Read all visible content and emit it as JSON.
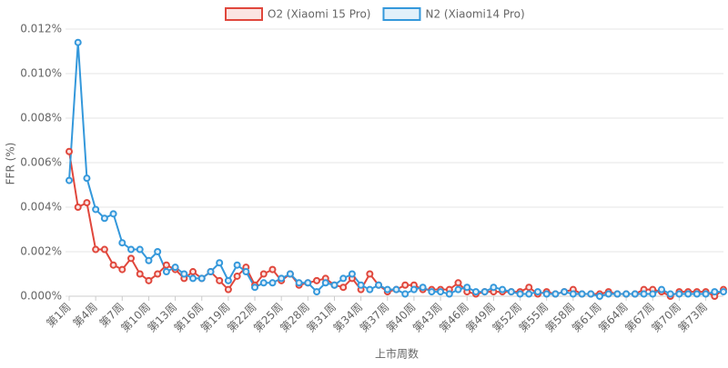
{
  "chart_data": {
    "type": "line",
    "x_label": "上市周数",
    "y_label": "FFR (%)",
    "categories": [
      "第1周",
      null,
      null,
      "第4周",
      null,
      null,
      "第7周",
      null,
      null,
      "第10周",
      null,
      null,
      "第13周",
      null,
      null,
      "第16周",
      null,
      null,
      "第19周",
      null,
      null,
      "第22周",
      null,
      null,
      "第25周",
      null,
      null,
      "第28周",
      null,
      null,
      "第31周",
      null,
      null,
      "第34周",
      null,
      null,
      "第37周",
      null,
      null,
      "第40周",
      null,
      null,
      "第43周",
      null,
      null,
      "第46周",
      null,
      null,
      "第49周",
      null,
      null,
      "第52周",
      null,
      null,
      "第55周",
      null,
      null,
      "第58周",
      null,
      null,
      "第61周",
      null,
      null,
      "第64周",
      null,
      null,
      "第67周",
      null,
      null,
      "第70周",
      null,
      null,
      "第73周",
      null,
      null
    ],
    "series": [
      {
        "name": "O2 (Xiaomi 15 Pro)",
        "color": "#e0473c",
        "fill": "#fbe4e2",
        "values": [
          0.0065,
          0.004,
          0.0042,
          0.0021,
          0.0021,
          0.0014,
          0.0012,
          0.0017,
          0.001,
          0.0007,
          0.001,
          0.0014,
          0.0012,
          0.0008,
          0.0011,
          0.0008,
          0.0011,
          0.0007,
          0.0003,
          0.0009,
          0.0013,
          0.0005,
          0.001,
          0.0012,
          0.0007,
          0.001,
          0.0005,
          0.0006,
          0.0007,
          0.0008,
          0.0005,
          0.0004,
          0.0008,
          0.0003,
          0.001,
          0.0005,
          0.0002,
          0.0003,
          0.0005,
          0.0005,
          0.0003,
          0.0003,
          0.0003,
          0.0003,
          0.0006,
          0.0002,
          0.0001,
          0.0002,
          0.0002,
          0.0002,
          0.0002,
          0.0002,
          0.0004,
          0.0001,
          0.0002,
          0.0001,
          0.0002,
          0.0003,
          0.0001,
          0.0001,
          0.0001,
          0.0002,
          0.0001,
          0.0001,
          0.0001,
          0.0003,
          0.0003,
          0.0002,
          0.0,
          0.0002,
          0.0002,
          0.0002,
          0.0002,
          0.0,
          0.0003
        ]
      },
      {
        "name": "N2 (Xiaomi14 Pro)",
        "color": "#3498db",
        "fill": "#e2f0fa",
        "values": [
          0.0052,
          0.0114,
          0.0053,
          0.0039,
          0.0035,
          0.0037,
          0.0024,
          0.0021,
          0.0021,
          0.0016,
          0.002,
          0.0011,
          0.0013,
          0.001,
          0.0008,
          0.0008,
          0.0011,
          0.0015,
          0.0007,
          0.0014,
          0.0011,
          0.0004,
          0.0006,
          0.0006,
          0.0008,
          0.001,
          0.0006,
          0.0006,
          0.0002,
          0.0006,
          0.0005,
          0.0008,
          0.001,
          0.0005,
          0.0003,
          0.0005,
          0.0003,
          0.0003,
          0.0001,
          0.0003,
          0.0004,
          0.0002,
          0.0002,
          0.0001,
          0.0003,
          0.0004,
          0.0002,
          0.0002,
          0.0004,
          0.0003,
          0.0002,
          0.0001,
          0.0001,
          0.0002,
          0.0001,
          0.0001,
          0.0002,
          0.0001,
          0.0001,
          0.0001,
          0.0,
          0.0001,
          0.0001,
          0.0001,
          0.0001,
          0.0001,
          0.0001,
          0.0003,
          0.0001,
          0.0001,
          0.0001,
          0.0001,
          0.0001,
          0.0002,
          0.0002
        ]
      }
    ],
    "ylim": [
      0,
      0.012
    ],
    "yticks": [
      {
        "value": 0,
        "label": "0.000%"
      },
      {
        "value": 0.002,
        "label": "0.002%"
      },
      {
        "value": 0.004,
        "label": "0.004%"
      },
      {
        "value": 0.006,
        "label": "0.006%"
      },
      {
        "value": 0.008,
        "label": "0.008%"
      },
      {
        "value": 0.01,
        "label": "0.010%"
      },
      {
        "value": 0.012,
        "label": "0.012%"
      }
    ],
    "grid": true,
    "legend": "top"
  }
}
